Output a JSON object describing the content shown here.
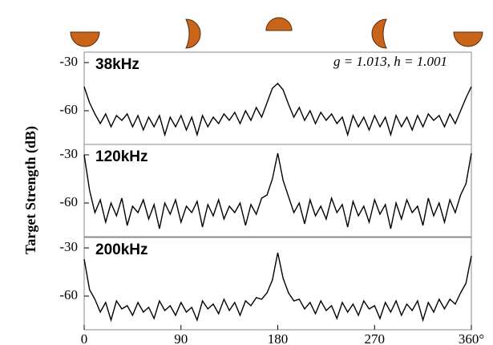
{
  "chart_data": [
    {
      "type": "line",
      "title": "38kHz",
      "annotation": "g = 1.013, h = 1.001",
      "color": "#000000",
      "x": [
        0,
        5,
        10,
        15,
        20,
        25,
        30,
        35,
        40,
        45,
        50,
        55,
        60,
        65,
        70,
        75,
        80,
        85,
        90,
        95,
        100,
        105,
        110,
        115,
        120,
        125,
        130,
        135,
        140,
        145,
        150,
        155,
        160,
        165,
        170,
        175,
        180,
        185,
        190,
        195,
        200,
        205,
        210,
        215,
        220,
        225,
        230,
        235,
        240,
        245,
        250,
        255,
        260,
        265,
        270,
        275,
        280,
        285,
        290,
        295,
        300,
        305,
        310,
        315,
        320,
        325,
        330,
        335,
        340,
        345,
        350,
        355,
        360
      ],
      "values": [
        -45,
        -55,
        -62,
        -68,
        -62,
        -70,
        -63,
        -66,
        -62,
        -70,
        -63,
        -72,
        -64,
        -70,
        -63,
        -75,
        -64,
        -70,
        -63,
        -72,
        -64,
        -75,
        -63,
        -70,
        -64,
        -68,
        -62,
        -66,
        -61,
        -68,
        -60,
        -66,
        -58,
        -64,
        -55,
        -46,
        -43,
        -47,
        -56,
        -64,
        -58,
        -66,
        -60,
        -68,
        -61,
        -66,
        -62,
        -68,
        -64,
        -75,
        -63,
        -70,
        -64,
        -72,
        -63,
        -70,
        -64,
        -75,
        -63,
        -70,
        -64,
        -72,
        -63,
        -70,
        -62,
        -66,
        -63,
        -70,
        -62,
        -68,
        -60,
        -52,
        -45
      ],
      "xlim": [
        0,
        360
      ],
      "ylim": [
        -81,
        -23.5
      ],
      "yticks": [
        -30,
        -60
      ]
    },
    {
      "type": "line",
      "title": "120kHz",
      "ylabel": "Target Strength (dB)",
      "color": "#000000",
      "x": [
        0,
        5,
        10,
        15,
        20,
        25,
        30,
        35,
        40,
        45,
        50,
        55,
        60,
        65,
        70,
        75,
        80,
        85,
        90,
        95,
        100,
        105,
        110,
        115,
        120,
        125,
        130,
        135,
        140,
        145,
        150,
        155,
        160,
        165,
        170,
        175,
        180,
        185,
        190,
        195,
        200,
        205,
        210,
        215,
        220,
        225,
        230,
        235,
        240,
        245,
        250,
        255,
        260,
        265,
        270,
        275,
        280,
        285,
        290,
        295,
        300,
        305,
        310,
        315,
        320,
        325,
        330,
        335,
        340,
        345,
        350,
        355,
        360
      ],
      "values": [
        -30,
        -52,
        -66,
        -58,
        -72,
        -60,
        -68,
        -57,
        -74,
        -62,
        -66,
        -58,
        -70,
        -61,
        -76,
        -60,
        -67,
        -58,
        -72,
        -62,
        -66,
        -59,
        -75,
        -61,
        -68,
        -58,
        -70,
        -62,
        -66,
        -60,
        -74,
        -61,
        -67,
        -57,
        -55,
        -45,
        -29,
        -46,
        -56,
        -66,
        -60,
        -73,
        -58,
        -68,
        -62,
        -70,
        -57,
        -66,
        -61,
        -75,
        -59,
        -68,
        -62,
        -72,
        -58,
        -67,
        -61,
        -76,
        -60,
        -70,
        -58,
        -66,
        -62,
        -74,
        -57,
        -68,
        -60,
        -72,
        -58,
        -66,
        -55,
        -48,
        -29
      ],
      "xlim": [
        0,
        360
      ],
      "ylim": [
        -81,
        -23.5
      ],
      "yticks": [
        -30,
        -60
      ]
    },
    {
      "type": "line",
      "title": "200kHz",
      "color": "#000000",
      "x": [
        0,
        5,
        10,
        15,
        20,
        25,
        30,
        35,
        40,
        45,
        50,
        55,
        60,
        65,
        70,
        75,
        80,
        85,
        90,
        95,
        100,
        105,
        110,
        115,
        120,
        125,
        130,
        135,
        140,
        145,
        150,
        155,
        160,
        165,
        170,
        175,
        180,
        185,
        190,
        195,
        200,
        205,
        210,
        215,
        220,
        225,
        230,
        235,
        240,
        245,
        250,
        255,
        260,
        265,
        270,
        275,
        280,
        285,
        290,
        295,
        300,
        305,
        310,
        315,
        320,
        325,
        330,
        335,
        340,
        345,
        350,
        355,
        360
      ],
      "values": [
        -37,
        -56,
        -62,
        -70,
        -64,
        -75,
        -63,
        -68,
        -66,
        -72,
        -64,
        -70,
        -67,
        -74,
        -63,
        -69,
        -66,
        -72,
        -64,
        -70,
        -67,
        -75,
        -63,
        -68,
        -65,
        -71,
        -62,
        -69,
        -64,
        -72,
        -63,
        -66,
        -61,
        -62,
        -58,
        -50,
        -33,
        -49,
        -58,
        -63,
        -62,
        -68,
        -64,
        -71,
        -63,
        -69,
        -66,
        -74,
        -64,
        -70,
        -65,
        -72,
        -63,
        -68,
        -66,
        -74,
        -64,
        -70,
        -63,
        -72,
        -65,
        -69,
        -63,
        -75,
        -64,
        -70,
        -62,
        -68,
        -62,
        -65,
        -58,
        -52,
        -35
      ],
      "xlim": [
        0,
        360
      ],
      "ylim": [
        -81,
        -23.5
      ],
      "yticks": [
        -30,
        -60
      ],
      "xticks": [
        0,
        90,
        180,
        270,
        {
          "value": 360,
          "label": "360°"
        }
      ]
    }
  ]
}
